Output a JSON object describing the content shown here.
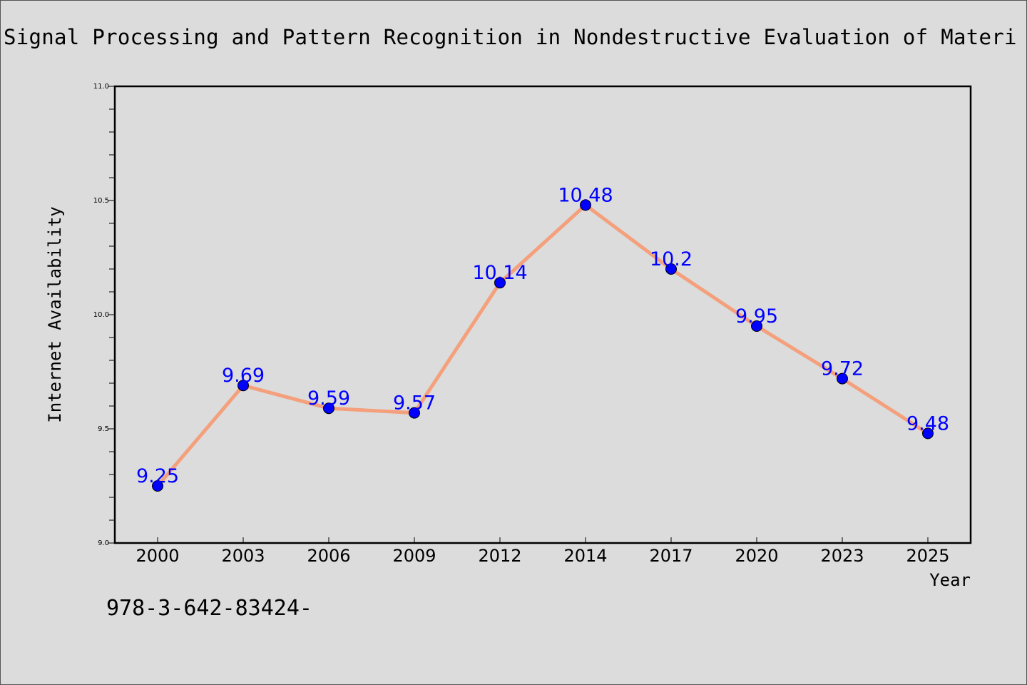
{
  "chart_data": {
    "type": "line",
    "title": "Signal Processing and Pattern Recognition in Nondestructive Evaluation of Materi",
    "xlabel": "Year",
    "ylabel": "Internet Availability",
    "categories": [
      "2000",
      "2003",
      "2006",
      "2009",
      "2012",
      "2014",
      "2017",
      "2020",
      "2023",
      "2025"
    ],
    "values": [
      9.25,
      9.69,
      9.59,
      9.57,
      10.14,
      10.48,
      10.2,
      9.95,
      9.72,
      9.48
    ],
    "data_labels": [
      "9.25",
      "9.69",
      "9.59",
      "9.57",
      "10.14",
      "10.48",
      "10.2",
      "9.95",
      "9.72",
      "9.48"
    ],
    "ylim": [
      9.0,
      11.0
    ],
    "yticks": [
      "9.0",
      "9.5",
      "10.0",
      "10.5",
      "11.0"
    ],
    "grid": false,
    "line_color": "#f4a07c",
    "marker_color": "#0000ff",
    "label_color": "#0000ff"
  },
  "footer": {
    "isbn": "978-3-642-83424-"
  }
}
